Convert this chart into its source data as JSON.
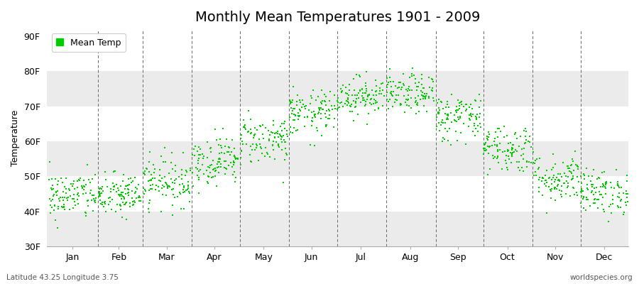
{
  "title": "Monthly Mean Temperatures 1901 - 2009",
  "ylabel": "Temperature",
  "xlabel_bottom_left": "Latitude 43.25 Longitude 3.75",
  "xlabel_bottom_right": "worldspecies.org",
  "legend_label": "Mean Temp",
  "yticks": [
    30,
    40,
    50,
    60,
    70,
    80,
    90
  ],
  "ytick_labels": [
    "30F",
    "40F",
    "50F",
    "60F",
    "70F",
    "80F",
    "90F"
  ],
  "ylim": [
    30,
    92
  ],
  "xlim": [
    0,
    365
  ],
  "months": [
    "Jan",
    "Feb",
    "Mar",
    "Apr",
    "May",
    "Jun",
    "Jul",
    "Aug",
    "Sep",
    "Oct",
    "Nov",
    "Dec"
  ],
  "month_day_starts": [
    1,
    32,
    60,
    91,
    121,
    152,
    182,
    213,
    244,
    274,
    305,
    335
  ],
  "month_day_ends": [
    31,
    59,
    90,
    120,
    151,
    181,
    212,
    243,
    273,
    304,
    334,
    365
  ],
  "month_centers_day": [
    16,
    45,
    75,
    105,
    136,
    166,
    197,
    228,
    258,
    289,
    319,
    350
  ],
  "dot_color": "#00cc00",
  "dot_size": 3,
  "bg_color": "#ffffff",
  "band_color_light": "#ebebeb",
  "band_color_white": "#ffffff",
  "grid_color": "#666666",
  "title_fontsize": 14,
  "axis_fontsize": 9,
  "legend_fontsize": 9,
  "seed": 42,
  "monthly_means": [
    44.5,
    44.5,
    48.5,
    54.5,
    60.5,
    68.0,
    73.0,
    73.5,
    67.0,
    58.0,
    49.5,
    45.5
  ],
  "monthly_stds": [
    3.5,
    3.2,
    3.5,
    3.5,
    3.5,
    3.2,
    2.8,
    2.8,
    3.5,
    3.5,
    3.5,
    3.2
  ],
  "n_years": 109
}
